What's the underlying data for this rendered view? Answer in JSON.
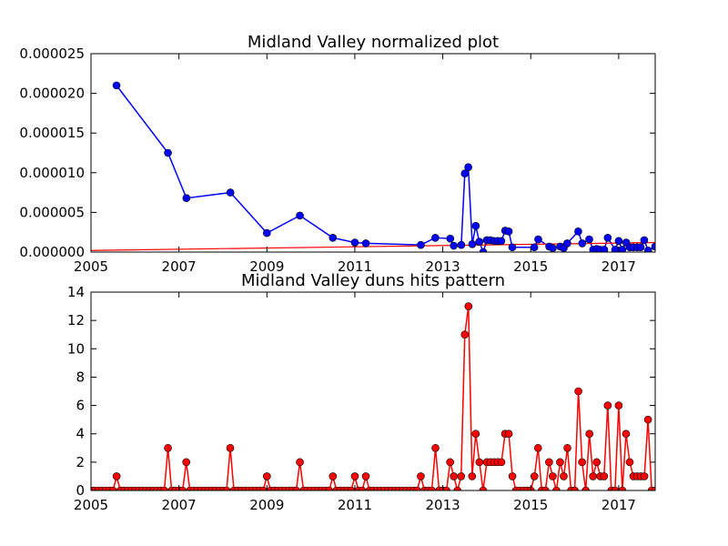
{
  "chart_data": [
    {
      "type": "line",
      "title": "Midland Valley normalized plot",
      "xlabel": "",
      "ylabel": "",
      "xlim": [
        2005.0,
        2017.83
      ],
      "ylim": [
        0,
        2.5e-05
      ],
      "xticks": [
        {
          "value": 2005,
          "label": "2005"
        },
        {
          "value": 2007,
          "label": "2007"
        },
        {
          "value": 2009,
          "label": "2009"
        },
        {
          "value": 2011,
          "label": "2011"
        },
        {
          "value": 2013,
          "label": "2013"
        },
        {
          "value": 2015,
          "label": "2015"
        },
        {
          "value": 2017,
          "label": "2017"
        }
      ],
      "yticks": [
        {
          "value": 0,
          "label": "0.000000"
        },
        {
          "value": 5e-06,
          "label": "0.000005"
        },
        {
          "value": 1e-05,
          "label": "0.000010"
        },
        {
          "value": 1.5e-05,
          "label": "0.000015"
        },
        {
          "value": 2e-05,
          "label": "0.000020"
        },
        {
          "value": 2.5e-05,
          "label": "0.000025"
        }
      ],
      "grid": false,
      "series": [
        {
          "color": "#0000ff",
          "marker": "circle",
          "points": [
            [
              2005.58,
              2.1e-05
            ],
            [
              2006.75,
              1.25e-05
            ],
            [
              2007.17,
              6.8e-06
            ],
            [
              2008.17,
              7.5e-06
            ],
            [
              2009.0,
              2.4e-06
            ],
            [
              2009.75,
              4.6e-06
            ],
            [
              2010.5,
              1.8e-06
            ],
            [
              2011.0,
              1.2e-06
            ],
            [
              2011.25,
              1.1e-06
            ],
            [
              2012.5,
              9e-07
            ],
            [
              2012.83,
              1.8e-06
            ],
            [
              2013.17,
              1.7e-06
            ],
            [
              2013.25,
              8e-07
            ],
            [
              2013.42,
              9e-07
            ],
            [
              2013.5,
              9.9e-06
            ],
            [
              2013.58,
              1.07e-05
            ],
            [
              2013.67,
              1e-06
            ],
            [
              2013.75,
              3.3e-06
            ],
            [
              2013.83,
              1.3e-06
            ],
            [
              2013.92,
              0.0
            ],
            [
              2014.0,
              1.5e-06
            ],
            [
              2014.08,
              1.5e-06
            ],
            [
              2014.17,
              1.4e-06
            ],
            [
              2014.25,
              1.4e-06
            ],
            [
              2014.33,
              1.4e-06
            ],
            [
              2014.42,
              2.7e-06
            ],
            [
              2014.5,
              2.6e-06
            ],
            [
              2014.58,
              6e-07
            ],
            [
              2015.08,
              6e-07
            ],
            [
              2015.17,
              1.6e-06
            ],
            [
              2015.42,
              7e-07
            ],
            [
              2015.5,
              5e-07
            ],
            [
              2015.67,
              7e-07
            ],
            [
              2015.75,
              5e-07
            ],
            [
              2015.83,
              1.1e-06
            ],
            [
              2016.08,
              2.6e-06
            ],
            [
              2016.17,
              1.1e-06
            ],
            [
              2016.33,
              1.6e-06
            ],
            [
              2016.42,
              3e-07
            ],
            [
              2016.5,
              4e-07
            ],
            [
              2016.58,
              3e-07
            ],
            [
              2016.67,
              3e-07
            ],
            [
              2016.75,
              1.8e-06
            ],
            [
              2016.92,
              3e-07
            ],
            [
              2017.0,
              1.4e-06
            ],
            [
              2017.08,
              3e-07
            ],
            [
              2017.17,
              1.2e-06
            ],
            [
              2017.25,
              6e-07
            ],
            [
              2017.33,
              6e-07
            ],
            [
              2017.42,
              6e-07
            ],
            [
              2017.5,
              6e-07
            ],
            [
              2017.58,
              1.5e-06
            ],
            [
              2017.67,
              2e-07
            ],
            [
              2017.83,
              7e-07
            ]
          ]
        }
      ],
      "trend_line": {
        "color": "#ff0000",
        "points": [
          [
            2005.0,
            2e-07
          ],
          [
            2017.83,
            1.2e-06
          ]
        ]
      }
    },
    {
      "type": "line",
      "title": "Midland Valley duns hits pattern",
      "xlabel": "",
      "ylabel": "",
      "xlim": [
        2005.0,
        2017.83
      ],
      "ylim": [
        0,
        14
      ],
      "xticks": [
        {
          "value": 2005,
          "label": "2005"
        },
        {
          "value": 2007,
          "label": "2007"
        },
        {
          "value": 2009,
          "label": "2009"
        },
        {
          "value": 2011,
          "label": "2011"
        },
        {
          "value": 2013,
          "label": "2013"
        },
        {
          "value": 2015,
          "label": "2015"
        },
        {
          "value": 2017,
          "label": "2017"
        }
      ],
      "yticks": [
        {
          "value": 0,
          "label": "0"
        },
        {
          "value": 2,
          "label": "2"
        },
        {
          "value": 4,
          "label": "4"
        },
        {
          "value": 6,
          "label": "6"
        },
        {
          "value": 8,
          "label": "8"
        },
        {
          "value": 10,
          "label": "10"
        },
        {
          "value": 12,
          "label": "12"
        },
        {
          "value": 14,
          "label": "14"
        }
      ],
      "grid": false,
      "series": [
        {
          "color": "#ff0000",
          "line_color": "#ff0000",
          "marker": "circle",
          "start_year": 2005,
          "start_month": 1,
          "values": [
            0,
            0,
            0,
            0,
            0,
            0,
            0,
            1,
            0,
            0,
            0,
            0,
            0,
            0,
            0,
            0,
            0,
            0,
            0,
            0,
            0,
            3,
            0,
            0,
            0,
            0,
            2,
            0,
            0,
            0,
            0,
            0,
            0,
            0,
            0,
            0,
            0,
            0,
            3,
            0,
            0,
            0,
            0,
            0,
            0,
            0,
            0,
            0,
            1,
            0,
            0,
            0,
            0,
            0,
            0,
            0,
            0,
            2,
            0,
            0,
            0,
            0,
            0,
            0,
            0,
            0,
            1,
            0,
            0,
            0,
            0,
            0,
            1,
            0,
            0,
            1,
            0,
            0,
            0,
            0,
            0,
            0,
            0,
            0,
            0,
            0,
            0,
            0,
            0,
            0,
            1,
            0,
            0,
            0,
            3,
            0,
            0,
            0,
            2,
            1,
            0,
            1,
            11,
            13,
            1,
            4,
            2,
            0,
            2,
            2,
            2,
            2,
            2,
            4,
            4,
            1,
            0,
            0,
            0,
            0,
            0,
            1,
            3,
            0,
            0,
            2,
            1,
            0,
            2,
            1,
            3,
            0,
            0,
            7,
            2,
            0,
            4,
            1,
            2,
            1,
            1,
            6,
            0,
            0,
            6,
            0,
            4,
            2,
            1,
            1,
            1,
            1,
            5,
            0,
            0,
            2
          ]
        }
      ]
    }
  ]
}
